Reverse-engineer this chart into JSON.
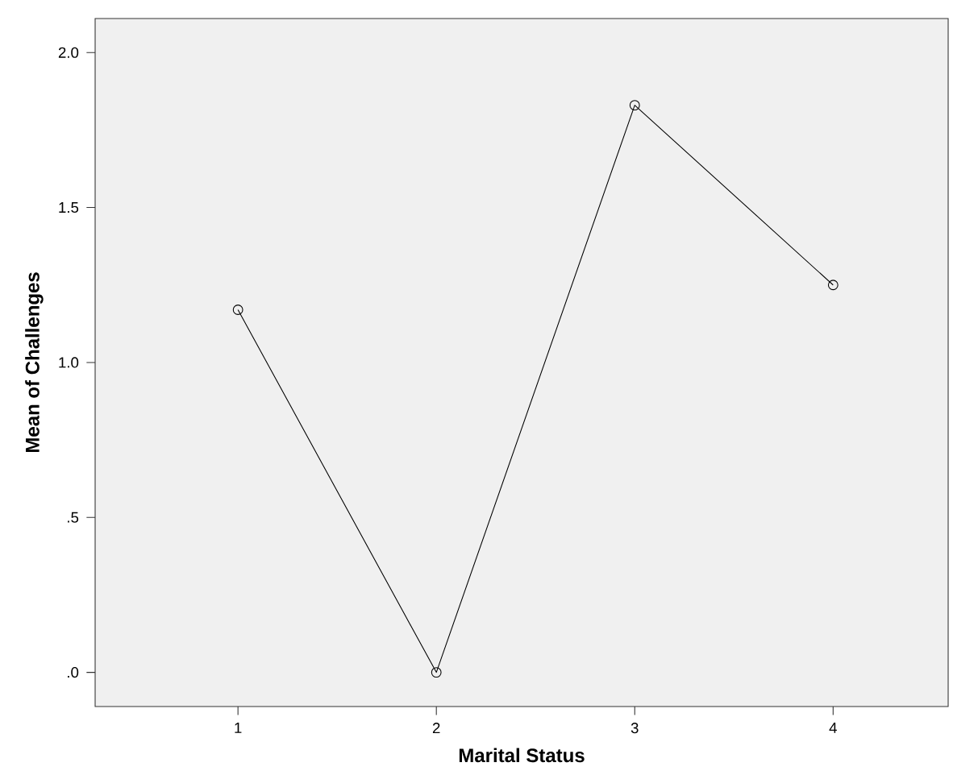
{
  "chart_data": {
    "type": "line",
    "xlabel": "Marital Status",
    "ylabel": "Mean of Challenges",
    "categories": [
      "1",
      "2",
      "3",
      "4"
    ],
    "series": [
      {
        "color": "#000000",
        "values": [
          1.17,
          0.0,
          1.83,
          1.25
        ]
      }
    ],
    "ylim": [
      -0.11,
      2.11
    ],
    "yticks": [
      {
        "value": 0,
        "label": ".0"
      },
      {
        "value": 0.5,
        "label": ".5"
      },
      {
        "value": 1,
        "label": "1.0"
      },
      {
        "value": 1.5,
        "label": "1.5"
      },
      {
        "value": 2,
        "label": "2.0"
      }
    ],
    "marker": "circle",
    "line_style": "solid"
  }
}
